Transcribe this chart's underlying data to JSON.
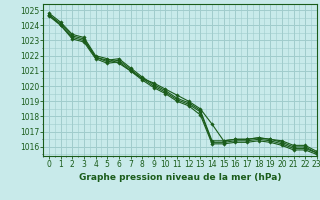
{
  "title": "Graphe pression niveau de la mer (hPa)",
  "bg_color": "#c8eaea",
  "bottom_bar_color": "#4a8a4a",
  "grid_color": "#a0cccc",
  "text_color": "#1a5c1a",
  "line_color": "#1a5c1a",
  "xlim": [
    -0.5,
    23
  ],
  "ylim": [
    1015.4,
    1025.4
  ],
  "yticks": [
    1016,
    1017,
    1018,
    1019,
    1020,
    1021,
    1022,
    1023,
    1024,
    1025
  ],
  "xticks": [
    0,
    1,
    2,
    3,
    4,
    5,
    6,
    7,
    8,
    9,
    10,
    11,
    12,
    13,
    14,
    15,
    16,
    17,
    18,
    19,
    20,
    21,
    22,
    23
  ],
  "series": [
    [
      1024.8,
      1024.2,
      1023.4,
      1023.2,
      1022.0,
      1021.8,
      1021.5,
      1021.0,
      1020.5,
      1020.2,
      1019.8,
      1019.4,
      1019.0,
      1018.5,
      1017.5,
      1016.4,
      1016.5,
      1016.5,
      1016.6,
      1016.5,
      1016.4,
      1016.1,
      1016.1,
      1015.7
    ],
    [
      1024.7,
      1024.1,
      1023.3,
      1023.1,
      1021.9,
      1021.7,
      1021.8,
      1021.2,
      1020.6,
      1020.1,
      1019.7,
      1019.2,
      1018.9,
      1018.4,
      1016.4,
      1016.4,
      1016.5,
      1016.5,
      1016.6,
      1016.5,
      1016.3,
      1016.0,
      1016.0,
      1015.6
    ],
    [
      1024.7,
      1024.0,
      1023.2,
      1023.0,
      1021.9,
      1021.6,
      1021.7,
      1021.1,
      1020.5,
      1020.0,
      1019.6,
      1019.1,
      1018.8,
      1018.3,
      1016.3,
      1016.3,
      1016.4,
      1016.4,
      1016.5,
      1016.4,
      1016.2,
      1015.9,
      1015.9,
      1015.6
    ],
    [
      1024.6,
      1024.0,
      1023.1,
      1022.9,
      1021.8,
      1021.5,
      1021.6,
      1021.0,
      1020.4,
      1019.9,
      1019.5,
      1019.0,
      1018.7,
      1018.1,
      1016.2,
      1016.2,
      1016.3,
      1016.3,
      1016.4,
      1016.3,
      1016.1,
      1015.8,
      1015.8,
      1015.5
    ]
  ]
}
